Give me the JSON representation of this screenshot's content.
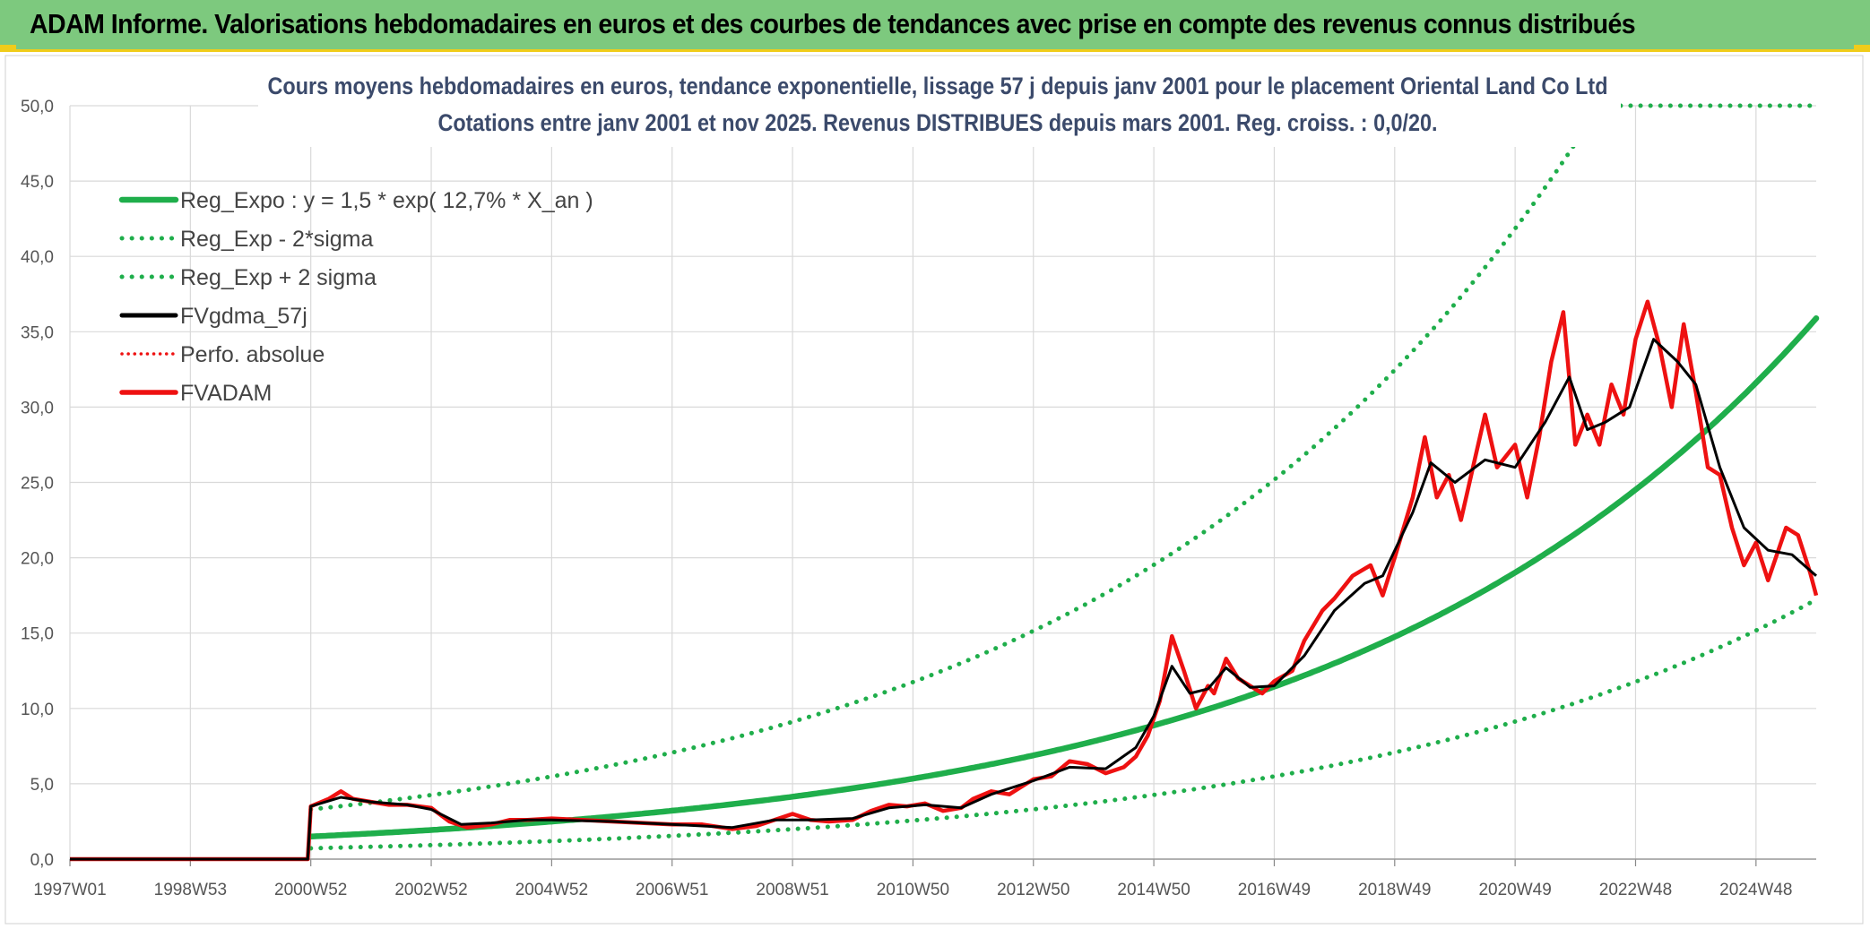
{
  "header": {
    "title": "ADAM Informe. Valorisations hebdomadaires en euros et des courbes de tendances avec prise en compte des revenus connus distribués"
  },
  "colors": {
    "banner": "#7dc97e",
    "accent": "#f0cc1a",
    "trend": "#1fae4b",
    "fvgdma": "#000000",
    "fvadam": "#ee1111",
    "grid": "#d9d9d9"
  },
  "chart_data": {
    "type": "line",
    "title": "Cours moyens hebdomadaires en euros, tendance exponentielle, lissage 57 j depuis janv 2001 pour le placement Oriental Land Co Ltd",
    "subtitle": "Cotations entre janv 2001 et nov 2025. Revenus DISTRIBUES depuis mars 2001. Reg. croiss. : 0,0/20.",
    "xlabel": "",
    "ylabel": "",
    "x_tick_labels": [
      "1997W01",
      "1998W53",
      "2000W52",
      "2002W52",
      "2004W52",
      "2006W51",
      "2008W51",
      "2010W50",
      "2012W50",
      "2014W50",
      "2016W49",
      "2018W49",
      "2020W49",
      "2022W48",
      "2024W48"
    ],
    "x_range": [
      1997.0,
      2026.0
    ],
    "ylim": [
      0,
      50
    ],
    "y_tick_labels": [
      "0,0",
      "5,0",
      "10,0",
      "15,0",
      "20,0",
      "25,0",
      "30,0",
      "35,0",
      "40,0",
      "45,0",
      "50,0"
    ],
    "grid": true,
    "legend_position": "top-left",
    "legend": [
      "Reg_Expo : y = 1,5 * exp( 12,7% *  X_an )",
      "Reg_Exp - 2*sigma",
      "Reg_Exp + 2 sigma",
      "FVgdma_57j",
      "Perfo. absolue",
      "FVADAM"
    ],
    "regression": {
      "a": 1.5,
      "rate": 0.127,
      "start": 2001.0,
      "end": 2026.0,
      "lower_factor": 0.48,
      "upper_factor": 2.2,
      "cap": 50
    },
    "series": [
      {
        "name": "FVADAM",
        "x": [
          1997.0,
          2000.95,
          2001.0,
          2001.3,
          2001.5,
          2001.7,
          2002.0,
          2002.3,
          2002.6,
          2003.0,
          2003.3,
          2003.6,
          2004.0,
          2004.3,
          2004.6,
          2005.0,
          2005.5,
          2006.0,
          2006.5,
          2007.0,
          2007.5,
          2008.0,
          2008.4,
          2008.7,
          2009.0,
          2009.3,
          2009.6,
          2010.0,
          2010.3,
          2010.6,
          2010.9,
          2011.2,
          2011.5,
          2011.8,
          2012.0,
          2012.3,
          2012.6,
          2013.0,
          2013.3,
          2013.6,
          2013.9,
          2014.2,
          2014.5,
          2014.7,
          2014.9,
          2015.1,
          2015.3,
          2015.5,
          2015.7,
          2015.9,
          2016.0,
          2016.2,
          2016.4,
          2016.6,
          2016.8,
          2017.0,
          2017.3,
          2017.5,
          2017.8,
          2018.0,
          2018.3,
          2018.6,
          2018.8,
          2019.0,
          2019.3,
          2019.5,
          2019.7,
          2019.9,
          2020.1,
          2020.3,
          2020.5,
          2020.7,
          2021.0,
          2021.2,
          2021.4,
          2021.6,
          2021.8,
          2022.0,
          2022.2,
          2022.4,
          2022.6,
          2022.8,
          2023.0,
          2023.2,
          2023.4,
          2023.6,
          2023.8,
          2024.0,
          2024.2,
          2024.4,
          2024.6,
          2024.8,
          2025.0,
          2025.2,
          2025.5,
          2025.7,
          2025.9,
          2026.0
        ],
        "y": [
          0,
          0,
          3.5,
          4.0,
          4.5,
          4.0,
          3.8,
          3.6,
          3.6,
          3.4,
          2.5,
          2.1,
          2.3,
          2.6,
          2.6,
          2.7,
          2.6,
          2.5,
          2.4,
          2.3,
          2.3,
          2.0,
          2.2,
          2.6,
          3.0,
          2.6,
          2.5,
          2.6,
          3.2,
          3.6,
          3.5,
          3.7,
          3.2,
          3.4,
          4.0,
          4.5,
          4.3,
          5.3,
          5.5,
          6.5,
          6.3,
          5.7,
          6.1,
          6.8,
          8.2,
          10.5,
          14.8,
          12.5,
          10.0,
          11.5,
          11.0,
          13.3,
          12.0,
          11.5,
          11.0,
          11.8,
          12.5,
          14.5,
          16.5,
          17.3,
          18.8,
          19.5,
          17.5,
          20.0,
          24.0,
          28.0,
          24.0,
          25.5,
          22.5,
          26.0,
          29.5,
          26.0,
          27.5,
          24.0,
          28.0,
          33.0,
          36.3,
          27.5,
          29.5,
          27.5,
          31.5,
          29.5,
          34.5,
          37.0,
          34.0,
          30.0,
          35.5,
          31.0,
          26.0,
          25.5,
          22.0,
          19.5,
          21.0,
          18.5,
          22.0,
          21.5,
          19.0,
          17.5
        ]
      },
      {
        "name": "FVgdma_57j",
        "x": [
          1997.0,
          2000.95,
          2001.0,
          2001.5,
          2002.0,
          2002.6,
          2003.0,
          2003.5,
          2004.0,
          2004.6,
          2005.0,
          2006.0,
          2007.0,
          2008.0,
          2008.7,
          2009.3,
          2010.0,
          2010.6,
          2011.2,
          2011.8,
          2012.3,
          2013.0,
          2013.6,
          2014.2,
          2014.7,
          2015.0,
          2015.3,
          2015.6,
          2015.9,
          2016.2,
          2016.6,
          2017.0,
          2017.5,
          2018.0,
          2018.5,
          2018.8,
          2019.3,
          2019.6,
          2020.0,
          2020.5,
          2021.0,
          2021.5,
          2021.9,
          2022.2,
          2022.5,
          2022.9,
          2023.3,
          2023.7,
          2024.0,
          2024.4,
          2024.8,
          2025.2,
          2025.6,
          2026.0
        ],
        "y": [
          0,
          0,
          3.5,
          4.1,
          3.8,
          3.6,
          3.3,
          2.3,
          2.4,
          2.6,
          2.6,
          2.5,
          2.3,
          2.1,
          2.6,
          2.6,
          2.7,
          3.4,
          3.6,
          3.4,
          4.3,
          5.2,
          6.1,
          6.0,
          7.4,
          9.5,
          12.8,
          11.0,
          11.3,
          12.7,
          11.4,
          11.5,
          13.5,
          16.5,
          18.3,
          18.8,
          23.0,
          26.3,
          25.0,
          26.5,
          26.0,
          29.0,
          32.0,
          28.5,
          29.0,
          30.0,
          34.5,
          33.0,
          31.5,
          26.0,
          22.0,
          20.5,
          20.2,
          18.8
        ]
      }
    ]
  }
}
